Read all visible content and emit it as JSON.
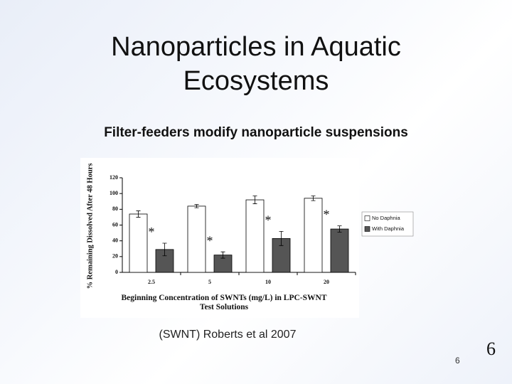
{
  "slide": {
    "title": "Nanoparticles in Aquatic Ecosystems",
    "subtitle": "Filter-feeders modify nanoparticle suspensions",
    "caption": "(SWNT) Roberts et al 2007",
    "page_number": "6"
  },
  "chart_data": {
    "type": "bar",
    "ylabel": "% Remaining Dissolved After 48 Hours",
    "xlabel": "Beginning Concentration of SWNTs (mg/L) in LPC-SWNT Test Solutions",
    "categories": [
      "2.5",
      "5",
      "10",
      "20"
    ],
    "series": [
      {
        "name": "No Daphnia",
        "color": "#ffffff",
        "values": [
          74,
          84,
          92,
          94
        ],
        "errors": [
          4,
          2,
          5,
          3
        ]
      },
      {
        "name": "With Daphnia",
        "color": "#555555",
        "values": [
          29,
          22,
          43,
          55
        ],
        "errors": [
          8,
          4,
          9,
          4
        ]
      }
    ],
    "annotations": [
      "*",
      "*",
      "*",
      "*"
    ],
    "ylim": [
      0,
      120
    ],
    "yticks": [
      0,
      20,
      40,
      60,
      80,
      100,
      120
    ],
    "legend": "right"
  }
}
